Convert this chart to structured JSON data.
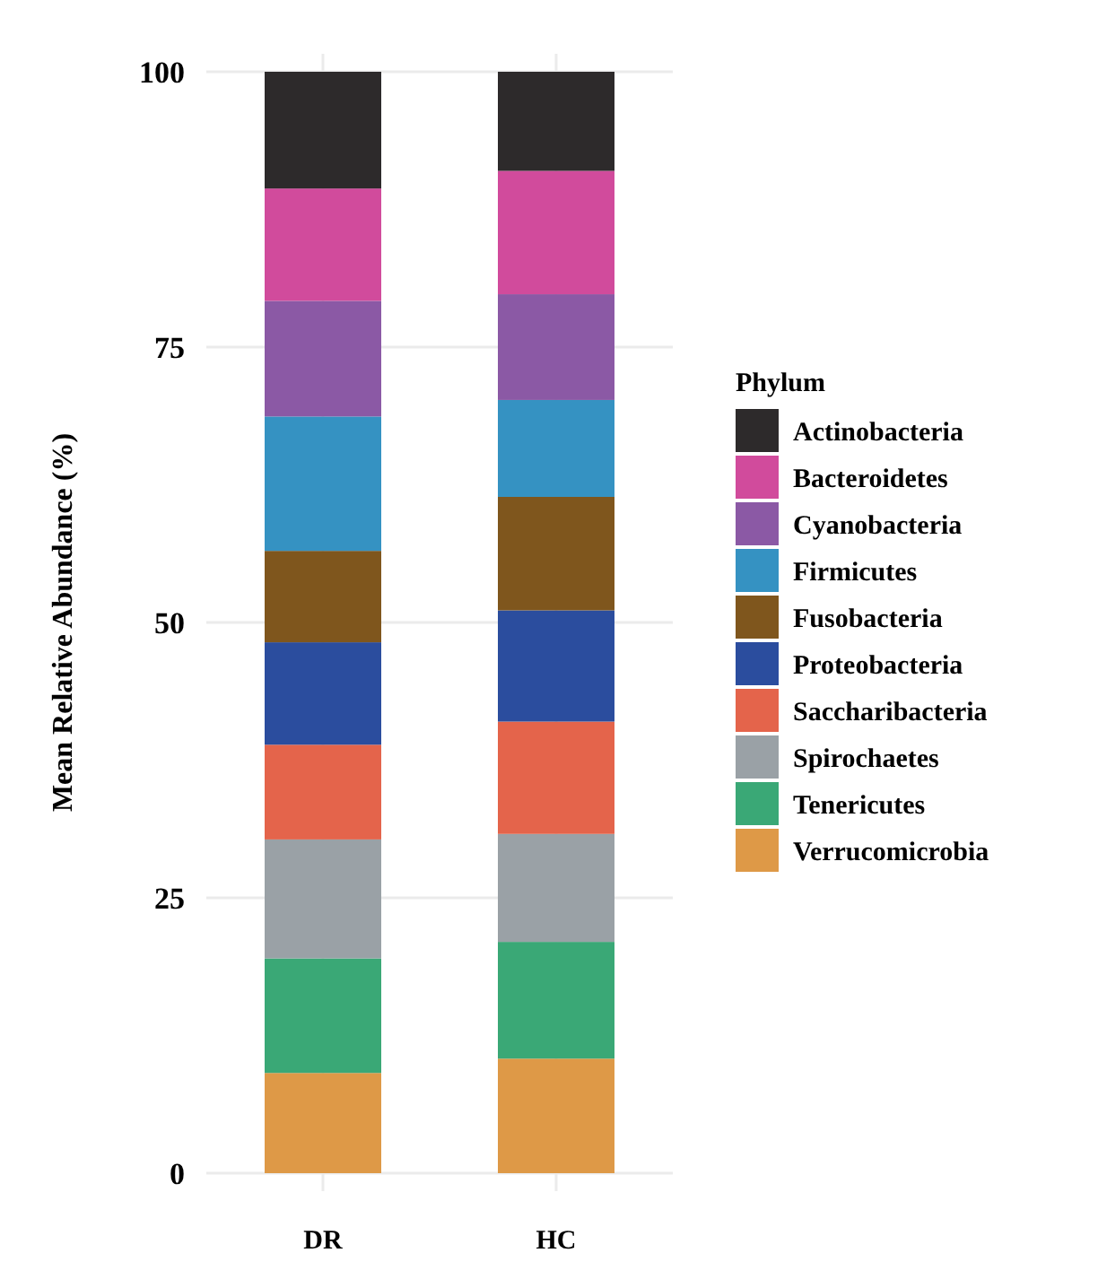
{
  "chart_data": {
    "type": "bar",
    "stacked": true,
    "ylabel": "Mean Relative Abundance (%)",
    "legend_title": "Phylum",
    "legend": "right",
    "grid": true,
    "categories": [
      "DR",
      "HC"
    ],
    "ylim": [
      0,
      100
    ],
    "yticks": [
      0,
      25,
      50,
      75,
      100
    ],
    "series": [
      {
        "name": "Verrucomicrobia",
        "color": "#de9947",
        "values": [
          9.1,
          10.4
        ]
      },
      {
        "name": "Tenericutes",
        "color": "#3aa876",
        "values": [
          10.4,
          10.6
        ]
      },
      {
        "name": "Spirochaetes",
        "color": "#9aa1a6",
        "values": [
          10.8,
          9.8
        ]
      },
      {
        "name": "Saccharibacteria",
        "color": "#e4644b",
        "values": [
          8.6,
          10.2
        ]
      },
      {
        "name": "Proteobacteria",
        "color": "#2b4d9e",
        "values": [
          9.3,
          10.1
        ]
      },
      {
        "name": "Fusobacteria",
        "color": "#7f561d",
        "values": [
          8.3,
          10.3
        ]
      },
      {
        "name": "Firmicutes",
        "color": "#3592c2",
        "values": [
          12.2,
          8.8
        ]
      },
      {
        "name": "Cyanobacteria",
        "color": "#8b59a5",
        "values": [
          10.5,
          9.6
        ]
      },
      {
        "name": "Bacteroidetes",
        "color": "#d14b9c",
        "values": [
          10.2,
          11.2
        ]
      },
      {
        "name": "Actinobacteria",
        "color": "#2d2a2b",
        "values": [
          10.6,
          9.0
        ]
      }
    ]
  }
}
